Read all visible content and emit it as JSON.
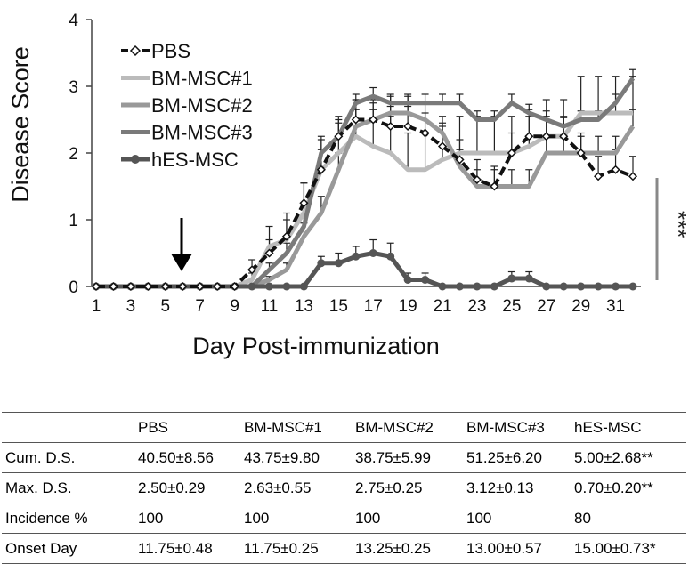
{
  "chart_data": {
    "type": "line",
    "title": "",
    "xlabel": "Day Post-immunization",
    "ylabel": "Disease Score",
    "xlim": [
      1,
      32
    ],
    "ylim": [
      0,
      4
    ],
    "x_ticks": [
      "1",
      "3",
      "5",
      "7",
      "9",
      "11",
      "13",
      "15",
      "17",
      "19",
      "21",
      "23",
      "25",
      "27",
      "29",
      "31"
    ],
    "y_ticks": [
      "0",
      "1",
      "2",
      "3",
      "4"
    ],
    "x": [
      1,
      2,
      3,
      4,
      5,
      6,
      7,
      8,
      9,
      10,
      11,
      12,
      13,
      14,
      15,
      16,
      17,
      18,
      19,
      20,
      21,
      22,
      23,
      24,
      25,
      26,
      27,
      28,
      29,
      30,
      31,
      32
    ],
    "arrow_day": 6,
    "significance": "***",
    "series": [
      {
        "name": "PBS",
        "color": "#111111",
        "style": "dashed-diamond",
        "values": [
          0,
          0,
          0,
          0,
          0,
          0,
          0,
          0,
          0,
          0.25,
          0.5,
          0.75,
          1.25,
          1.75,
          2.25,
          2.5,
          2.5,
          2.4,
          2.4,
          2.3,
          2.1,
          1.9,
          1.6,
          1.5,
          2.0,
          2.25,
          2.25,
          2.25,
          2.0,
          1.65,
          1.75,
          1.65
        ],
        "errors": [
          0,
          0,
          0,
          0,
          0,
          0,
          0,
          0,
          0,
          0.15,
          0.2,
          0.25,
          0.3,
          0.3,
          0.3,
          0.3,
          0.3,
          0.3,
          0.3,
          0.3,
          0.3,
          0.3,
          0.3,
          0.3,
          0.3,
          0.3,
          0.3,
          0.3,
          0.3,
          0.3,
          0.3,
          0.3
        ]
      },
      {
        "name": "BM-MSC#1",
        "color": "#bbbbbb",
        "style": "solid",
        "values": [
          0,
          0,
          0,
          0,
          0,
          0,
          0,
          0,
          0,
          0.1,
          0.6,
          0.7,
          1.1,
          1.75,
          2.0,
          2.25,
          2.1,
          2.0,
          1.75,
          1.75,
          1.9,
          2.0,
          2.0,
          2.0,
          2.0,
          2.1,
          2.25,
          2.25,
          2.6,
          2.6,
          2.6,
          2.6
        ],
        "errors": [
          0,
          0,
          0,
          0,
          0,
          0,
          0,
          0,
          0,
          0.1,
          0.3,
          0.4,
          0.45,
          0.5,
          0.5,
          0.55,
          0.55,
          0.55,
          0.55,
          0.55,
          0.55,
          0.55,
          0.55,
          0.55,
          0.55,
          0.55,
          0.55,
          0.55,
          0.55,
          0.55,
          0.55,
          0.55
        ]
      },
      {
        "name": "BM-MSC#2",
        "color": "#999999",
        "style": "solid",
        "values": [
          0,
          0,
          0,
          0,
          0,
          0,
          0,
          0,
          0,
          0,
          0.1,
          0.25,
          0.75,
          1.1,
          1.75,
          2.4,
          2.5,
          2.6,
          2.6,
          2.5,
          2.3,
          1.8,
          1.5,
          1.5,
          1.5,
          1.5,
          2.0,
          2.0,
          2.0,
          2.0,
          2.0,
          2.4
        ],
        "errors": [
          0,
          0,
          0,
          0,
          0,
          0,
          0,
          0,
          0,
          0,
          0.05,
          0.1,
          0.2,
          0.25,
          0.25,
          0.25,
          0.25,
          0.25,
          0.25,
          0.25,
          0.25,
          0.25,
          0.25,
          0.25,
          0.25,
          0.25,
          0.25,
          0.25,
          0.25,
          0.25,
          0.25,
          0.25
        ]
      },
      {
        "name": "BM-MSC#3",
        "color": "#7a7a7a",
        "style": "solid",
        "values": [
          0,
          0,
          0,
          0,
          0,
          0,
          0,
          0,
          0,
          0,
          0.25,
          0.5,
          0.9,
          2.0,
          2.25,
          2.75,
          2.85,
          2.75,
          2.75,
          2.75,
          2.75,
          2.75,
          2.5,
          2.5,
          2.75,
          2.6,
          2.5,
          2.4,
          2.5,
          2.5,
          2.75,
          3.12
        ],
        "errors": [
          0,
          0,
          0,
          0,
          0,
          0,
          0,
          0,
          0,
          0,
          0.1,
          0.15,
          0.2,
          0.2,
          0.2,
          0.13,
          0.13,
          0.13,
          0.13,
          0.13,
          0.13,
          0.13,
          0.13,
          0.13,
          0.13,
          0.13,
          0.13,
          0.13,
          0.13,
          0.13,
          0.13,
          0.13
        ]
      },
      {
        "name": "hES-MSC",
        "color": "#555555",
        "style": "solid-circle",
        "values": [
          0,
          0,
          0,
          0,
          0,
          0,
          0,
          0,
          0,
          0,
          0,
          0,
          0,
          0.35,
          0.35,
          0.45,
          0.5,
          0.45,
          0.1,
          0.1,
          0,
          0,
          0,
          0,
          0.12,
          0.12,
          0,
          0,
          0,
          0,
          0,
          0
        ],
        "errors": [
          0,
          0,
          0,
          0,
          0,
          0,
          0,
          0,
          0,
          0,
          0,
          0,
          0,
          0.1,
          0.15,
          0.15,
          0.2,
          0.2,
          0.1,
          0.1,
          0,
          0,
          0,
          0,
          0.1,
          0.1,
          0,
          0,
          0,
          0,
          0,
          0
        ]
      }
    ]
  },
  "table": {
    "headers": [
      "",
      "PBS",
      "BM-MSC#1",
      "BM-MSC#2",
      "BM-MSC#3",
      "hES-MSC"
    ],
    "rows": [
      [
        "Cum. D.S.",
        "40.50±8.56",
        "43.75±9.80",
        "38.75±5.99",
        "51.25±6.20",
        "5.00±2.68**"
      ],
      [
        "Max. D.S.",
        "2.50±0.29",
        "2.63±0.55",
        "2.75±0.25",
        "3.12±0.13",
        "0.70±0.20**"
      ],
      [
        "Incidence %",
        "100",
        "100",
        "100",
        "100",
        "80"
      ],
      [
        "Onset Day",
        "11.75±0.48",
        "11.75±0.25",
        "13.25±0.25",
        "13.00±0.57",
        "15.00±0.73*"
      ]
    ]
  }
}
